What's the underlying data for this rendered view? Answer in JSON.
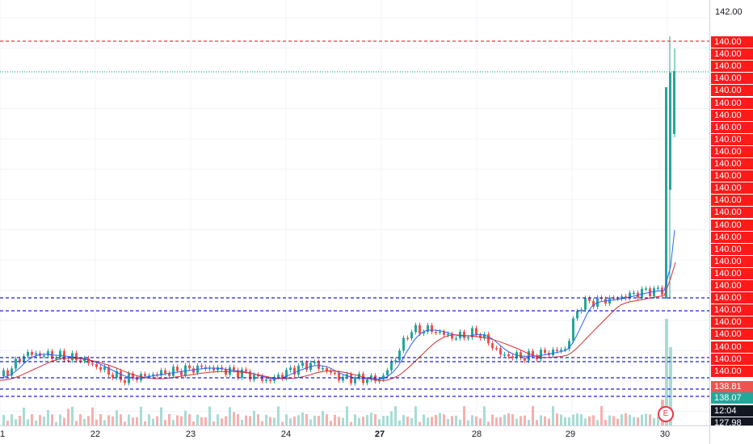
{
  "price_scale": {
    "top_tick": "142.00",
    "label_value": "140.00",
    "bottom_labels": [
      {
        "text": "138.81",
        "color": "#ef5350"
      },
      {
        "text": "138.07",
        "color": "#26a69a"
      },
      {
        "text": "12:04",
        "color": "#131722"
      },
      {
        "text": "127.98",
        "color": "#131722"
      }
    ]
  },
  "time_axis": {
    "labels": [
      {
        "text": "1",
        "bold": false
      },
      {
        "text": "22",
        "bold": false
      },
      {
        "text": "23",
        "bold": false
      },
      {
        "text": "24",
        "bold": false
      },
      {
        "text": "27",
        "bold": true
      },
      {
        "text": "28",
        "bold": false
      },
      {
        "text": "29",
        "bold": false
      },
      {
        "text": "30",
        "bold": false
      }
    ]
  },
  "earnings_marker": {
    "label": "E"
  },
  "colors": {
    "up": "#26a69a",
    "down": "#ef5350",
    "ma_fast": "#2962ff",
    "ma_slow": "#d32f2f",
    "red_line": "#f23645",
    "blue_line": "#1e1ed6",
    "cyan_line": "#26a69a",
    "label_bg": "#ff1a1a"
  },
  "chart_data": {
    "type": "candlestick",
    "note": "Intraday candlestick chart with two moving averages, volume bars and horizontal drawn lines",
    "x_labels": [
      "1",
      "22",
      "23",
      "24",
      "27",
      "28",
      "29",
      "30"
    ],
    "drawn_lines": {
      "red_dashed": [
        141.0
      ],
      "cyan_dotted": [
        140.6
      ],
      "blue_dashed": [
        136.1,
        135.9,
        135.2,
        135.1,
        134.8,
        134.6,
        134.35
      ]
    }
  }
}
